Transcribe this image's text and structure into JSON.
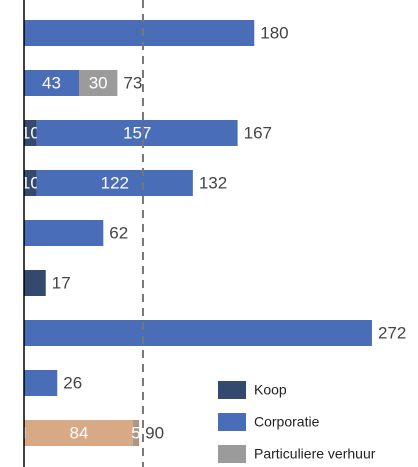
{
  "chart_data": {
    "type": "stacked-bar-horizontal",
    "series": [
      {
        "name": "Koop",
        "color": "#34496e",
        "values": [
          0,
          0,
          10,
          10,
          0,
          17,
          0,
          0,
          1
        ]
      },
      {
        "name": "Corporatie",
        "color": "#4a6db8",
        "values": [
          180,
          43,
          157,
          122,
          62,
          0,
          272,
          26,
          84
        ]
      },
      {
        "name": "Particuliere verhuur",
        "color": "#9b9b9b",
        "values": [
          0,
          30,
          0,
          0,
          0,
          0,
          0,
          0,
          5
        ]
      }
    ],
    "totals": [
      180,
      73,
      167,
      132,
      62,
      17,
      272,
      26,
      90
    ],
    "highlight": {
      "index": 8,
      "colors": [
        "#c4875a",
        "#d7a985",
        "#a99787"
      ]
    },
    "reference_line": 93,
    "xlim": [
      0,
      308
    ]
  }
}
